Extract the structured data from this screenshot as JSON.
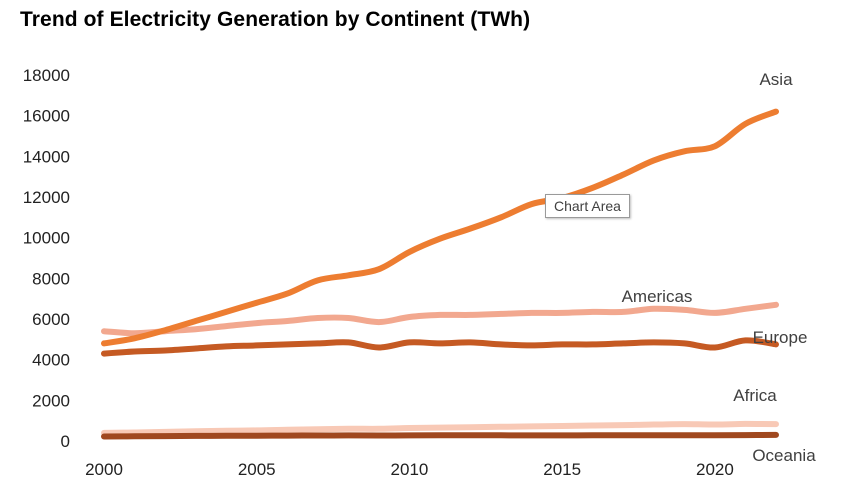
{
  "chart_data": {
    "type": "line",
    "title": "Trend of Electricity Generation by Continent (TWh)",
    "xlabel": "",
    "ylabel": "",
    "x": [
      2000,
      2001,
      2002,
      2003,
      2004,
      2005,
      2006,
      2007,
      2008,
      2009,
      2010,
      2011,
      2012,
      2013,
      2014,
      2015,
      2016,
      2017,
      2018,
      2019,
      2020,
      2021,
      2022
    ],
    "xticks": [
      2000,
      2005,
      2010,
      2015,
      2020
    ],
    "xlim": [
      2000,
      2022
    ],
    "ylim": [
      0,
      18000
    ],
    "yticks": [
      0,
      2000,
      4000,
      6000,
      8000,
      10000,
      12000,
      14000,
      16000,
      18000
    ],
    "grid": false,
    "legend": "none",
    "series": [
      {
        "name": "Asia",
        "color": "#ed7d31",
        "values": [
          4800,
          5050,
          5450,
          5900,
          6350,
          6800,
          7250,
          7900,
          8150,
          8450,
          9300,
          9950,
          10450,
          11000,
          11650,
          11950,
          12450,
          13100,
          13800,
          14250,
          14500,
          15600,
          16200
        ]
      },
      {
        "name": "Americas",
        "color": "#f2a88f",
        "values": [
          5400,
          5300,
          5400,
          5500,
          5650,
          5800,
          5900,
          6050,
          6050,
          5850,
          6100,
          6200,
          6200,
          6250,
          6300,
          6300,
          6350,
          6350,
          6500,
          6450,
          6300,
          6500,
          6700
        ]
      },
      {
        "name": "Europe",
        "color": "#c55a23",
        "values": [
          4300,
          4400,
          4450,
          4550,
          4650,
          4700,
          4750,
          4800,
          4850,
          4600,
          4850,
          4800,
          4850,
          4750,
          4700,
          4750,
          4750,
          4800,
          4850,
          4800,
          4600,
          4950,
          4750
        ]
      },
      {
        "name": "Africa",
        "color": "#f8c9b6",
        "values": [
          400,
          420,
          450,
          480,
          500,
          520,
          550,
          580,
          600,
          600,
          640,
          660,
          680,
          700,
          720,
          740,
          760,
          780,
          810,
          830,
          810,
          840,
          830
        ]
      },
      {
        "name": "Oceania",
        "color": "#a0481f",
        "values": [
          220,
          230,
          240,
          250,
          255,
          260,
          265,
          270,
          275,
          270,
          275,
          280,
          280,
          280,
          275,
          275,
          280,
          280,
          285,
          285,
          280,
          290,
          300
        ]
      }
    ],
    "annotations": [
      "Chart Area"
    ]
  }
}
